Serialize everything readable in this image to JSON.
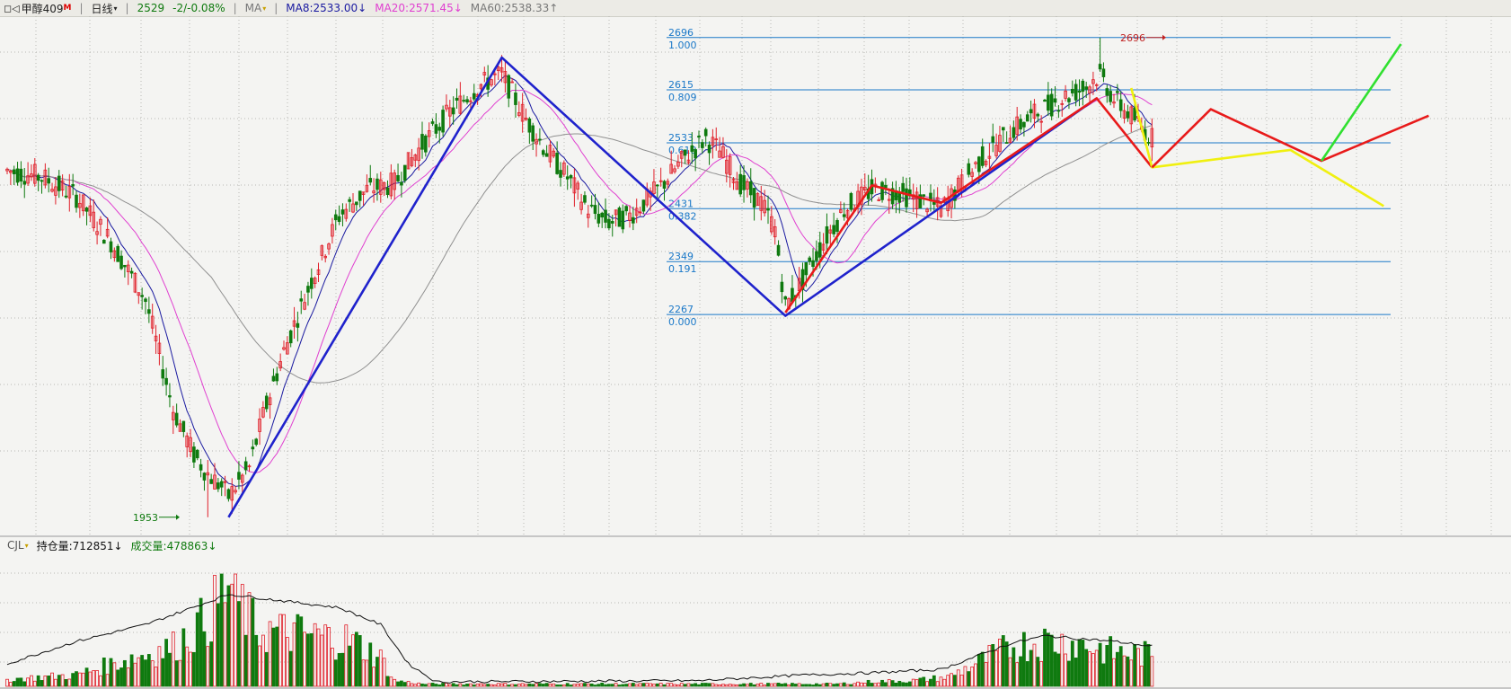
{
  "header": {
    "window_icon": "window-toggle-icon",
    "symbol": "甲醇409",
    "symbol_flag": "M",
    "period": "日线",
    "last_price": "2529",
    "change": "-2/-0.08%",
    "indicator": "MA",
    "ma8": "MA8:2533.00↓",
    "ma20": "MA20:2571.45↓",
    "ma60": "MA60:2538.33↑"
  },
  "sub_header": {
    "indicator": "CJL",
    "open_interest": "持仓量:712851↓",
    "volume": "成交量:478863↓"
  },
  "colors": {
    "up": "#e0202a",
    "down": "#0f7a0f",
    "ma8": "#1a1aa0",
    "ma20": "#e040d0",
    "ma60": "#909090",
    "fib": "#1a78c8",
    "wave_blue": "#1f22cc",
    "wave_red": "#e81a1a",
    "wave_yellow": "#f0f010",
    "wave_green": "#30e030"
  },
  "chart_data": [
    {
      "type": "candlestick",
      "title": "甲醇409",
      "period": "日线",
      "price_range": [
        1953,
        2696
      ],
      "price_extremes": {
        "low": {
          "label": "1953",
          "value": 1953
        },
        "high": {
          "label": "2696",
          "value": 2696
        }
      },
      "fib_levels": [
        {
          "price": "2696",
          "ratio": "1.000"
        },
        {
          "price": "2615",
          "ratio": "0.809"
        },
        {
          "price": "2533",
          "ratio": "0.618"
        },
        {
          "price": "2431",
          "ratio": "0.382"
        },
        {
          "price": "2349",
          "ratio": "0.191"
        },
        {
          "price": "2267",
          "ratio": "0.000"
        }
      ],
      "wave_lines": [
        {
          "color": "blue",
          "points": [
            [
              64,
              1953
            ],
            [
              143,
              2665
            ],
            [
              225,
              2265
            ],
            [
              315,
              2602
            ]
          ]
        },
        {
          "color": "red",
          "points": [
            [
              225,
              2270
            ],
            [
              250,
              2467
            ],
            [
              270,
              2440
            ],
            [
              315,
              2602
            ],
            [
              331,
              2495
            ]
          ]
        },
        {
          "color": "yellow",
          "points": [
            [
              325,
              2618
            ],
            [
              331,
              2495
            ],
            [
              371,
              2522
            ],
            [
              398,
              2435
            ]
          ]
        },
        {
          "color": "red",
          "points": [
            [
              331,
              2495
            ],
            [
              348,
              2585
            ],
            [
              380,
              2505
            ],
            [
              411,
              2575
            ]
          ]
        },
        {
          "color": "green",
          "points": [
            [
              380,
              2505
            ],
            [
              403,
              2686
            ]
          ]
        }
      ],
      "series_note": "OHLC daily candles with MA8, MA20, MA60 overlays",
      "ma_lines": [
        "MA8",
        "MA20",
        "MA60"
      ]
    },
    {
      "type": "bar",
      "title": "CJL",
      "series": [
        {
          "name": "持仓量",
          "value": 712851
        },
        {
          "name": "成交量",
          "value": 478863
        }
      ]
    }
  ]
}
